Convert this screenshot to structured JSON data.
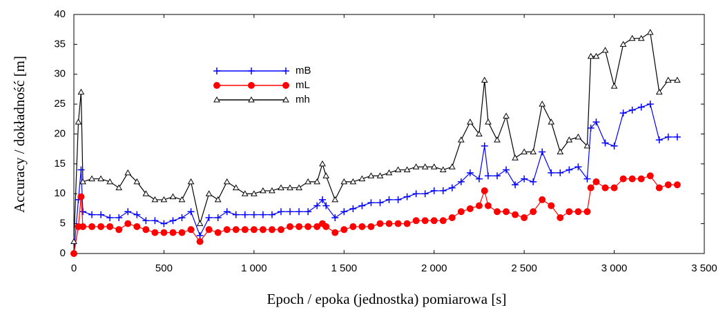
{
  "chart_data": {
    "type": "line",
    "x_label": "Epoch / epoka (jednostka) pomiarowa [s]",
    "y_label": "Accuracy / dokładność  [m]",
    "x": [
      0,
      25,
      40,
      50,
      100,
      150,
      200,
      250,
      300,
      350,
      400,
      450,
      500,
      550,
      600,
      650,
      700,
      750,
      800,
      850,
      900,
      950,
      1000,
      1050,
      1100,
      1150,
      1200,
      1250,
      1300,
      1350,
      1380,
      1400,
      1450,
      1500,
      1550,
      1600,
      1650,
      1700,
      1750,
      1800,
      1850,
      1900,
      1950,
      2000,
      2050,
      2100,
      2150,
      2200,
      2250,
      2280,
      2300,
      2350,
      2400,
      2450,
      2500,
      2550,
      2600,
      2650,
      2700,
      2750,
      2800,
      2850,
      2870,
      2900,
      2950,
      3000,
      3050,
      3100,
      3150,
      3200,
      3250,
      3300,
      3350
    ],
    "series": [
      {
        "name": "mB",
        "color": "#0000ff",
        "marker": "plus",
        "values": [
          0,
          9,
          14,
          7,
          6.5,
          6.5,
          6,
          6,
          7,
          6.5,
          5.5,
          5.5,
          5,
          5.5,
          6,
          7,
          3,
          6,
          6,
          7,
          6.5,
          6.5,
          6.5,
          6.5,
          6.5,
          7,
          7,
          7,
          7,
          8,
          9,
          8,
          6,
          7,
          7.5,
          8,
          8.5,
          8.5,
          9,
          9,
          9.5,
          10,
          10,
          10.5,
          10.5,
          11,
          12,
          13.5,
          12.5,
          18,
          13,
          13,
          14,
          11.5,
          12.5,
          12,
          17,
          13.5,
          13.5,
          14,
          14.5,
          12.5,
          21,
          22,
          18.5,
          18,
          23.5,
          24,
          24.5,
          25,
          19,
          19.5,
          19.5
        ]
      },
      {
        "name": "mL",
        "color": "#ff0000",
        "marker": "circle",
        "values": [
          0,
          4.5,
          9.5,
          4.5,
          4.5,
          4.5,
          4.5,
          4,
          5,
          4.5,
          4,
          3.5,
          3.5,
          3.5,
          3.5,
          4,
          2,
          4,
          3.5,
          4,
          4,
          4,
          4,
          4,
          4,
          4,
          4.5,
          4.5,
          4.5,
          4.5,
          5,
          4.5,
          3.5,
          4,
          4.5,
          4.5,
          4.5,
          5,
          5,
          5,
          5,
          5.5,
          5.5,
          5.5,
          5.5,
          6,
          7,
          7.5,
          8,
          10.5,
          8,
          7,
          7,
          6.5,
          6,
          7,
          9,
          8,
          6,
          7,
          7,
          7,
          11,
          12,
          11,
          11,
          12.5,
          12.5,
          12.5,
          13,
          11,
          11.5,
          11.5
        ]
      },
      {
        "name": "mh",
        "color": "#000000",
        "marker": "triangle",
        "values": [
          2,
          22,
          27,
          12,
          12.5,
          12.5,
          12,
          11,
          13.5,
          12,
          10,
          9,
          9,
          9.5,
          9,
          12,
          5,
          10,
          9,
          12,
          11,
          10,
          10,
          10.5,
          10.5,
          11,
          11,
          11,
          12,
          12,
          15,
          13,
          9,
          12,
          12,
          12.5,
          13,
          13,
          13.5,
          14,
          14,
          14.5,
          14.5,
          14.5,
          14,
          14.5,
          19,
          22,
          20,
          29,
          22,
          19,
          23,
          16,
          17,
          17,
          25,
          22,
          17,
          19,
          19.5,
          18,
          33,
          33,
          34,
          28,
          35,
          36,
          36,
          37,
          27,
          29,
          29
        ]
      }
    ],
    "xlim": [
      0,
      3500
    ],
    "xticks": [
      0,
      500,
      {
        "value": 1000,
        "label": "1 000"
      },
      {
        "value": 1500,
        "label": "1 500"
      },
      {
        "value": 2000,
        "label": "2 000"
      },
      {
        "value": 2500,
        "label": "2 500"
      },
      {
        "value": 3000,
        "label": "3 000"
      },
      {
        "value": 3500,
        "label": "3 500"
      }
    ],
    "ylim": [
      0,
      40
    ],
    "yticks": [
      0,
      5,
      10,
      15,
      20,
      25,
      30,
      35,
      40
    ],
    "legend": "upper-left-center"
  }
}
